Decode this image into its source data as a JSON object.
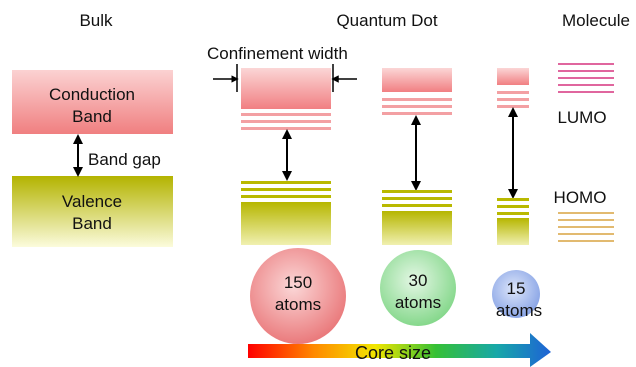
{
  "headers": {
    "bulk": "Bulk",
    "quantum_dot": "Quantum Dot",
    "molecule": "Molecule"
  },
  "labels": {
    "confinement_width": "Confinement width",
    "conduction_band": "Conduction\nBand",
    "valence_band": "Valence\nBand",
    "band_gap": "Band gap",
    "lumo": "LUMO",
    "homo": "HOMO",
    "core_size": "Core size"
  },
  "dots": [
    {
      "number": "150",
      "unit": "atoms"
    },
    {
      "number": "30",
      "unit": "atoms"
    },
    {
      "number": "15",
      "unit": "atoms"
    }
  ],
  "colors": {
    "conduction": "#f38e8e",
    "valence": "#b8b800",
    "lumo_lines": "#d6347f",
    "homo_lines": "#d9a441",
    "arrow": "#1e6fd0",
    "circle_red": "#f08a8a",
    "circle_green": "#a6e2aa",
    "circle_blue": "#9db3ea"
  }
}
